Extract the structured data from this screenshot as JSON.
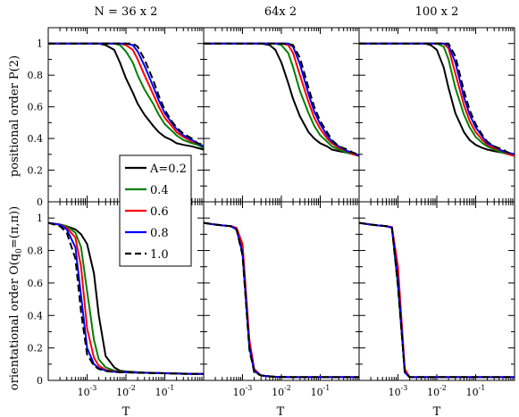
{
  "chart_data": {
    "type": "line",
    "panel_titles": [
      "N = 36 x 2",
      "64x 2",
      "100 x 2"
    ],
    "xlabel": "T",
    "ylabel_top": "positional order P(2)",
    "ylabel_bottom": "orientational order O(q0=(π,π))",
    "ylabel_bottom_parts": [
      "orientational order O(q",
      "0",
      "=(π,π))"
    ],
    "x_scale": "log",
    "xlim": [
      0.0001,
      1.0
    ],
    "x_tick_labels": [
      {
        "value": 0.001,
        "base": "10",
        "exp": "-3"
      },
      {
        "value": 0.01,
        "base": "10",
        "exp": "-2"
      },
      {
        "value": 0.1,
        "base": "10",
        "exp": "-1"
      }
    ],
    "ylim": [
      0,
      1.1
    ],
    "y_ticks": [
      0,
      0.2,
      0.4,
      0.6,
      0.8,
      1
    ],
    "y_tick_labels_top": [
      "0",
      "0.2",
      "0.4",
      "0.6",
      "0.8",
      "1"
    ],
    "y_tick_labels_bottom": [
      "0",
      "0.2",
      "0.4",
      "0.6",
      "0.8",
      "1"
    ],
    "legend_position": "left-middle",
    "series": [
      {
        "name": "A=0.2",
        "color": "#000000",
        "dash": false
      },
      {
        "name": "0.4",
        "color": "#008000",
        "dash": false
      },
      {
        "name": "0.6",
        "color": "#ff0000",
        "dash": false
      },
      {
        "name": "0.8",
        "color": "#0000ff",
        "dash": false
      },
      {
        "name": "1.0",
        "color": "#000000",
        "dash": true
      }
    ],
    "x": [
      0.0001,
      0.0002,
      0.0003,
      0.0005,
      0.0007,
      0.001,
      0.0015,
      0.002,
      0.003,
      0.005,
      0.007,
      0.01,
      0.015,
      0.02,
      0.03,
      0.05,
      0.07,
      0.1,
      0.15,
      0.2,
      0.3,
      0.5,
      0.7,
      1.0
    ],
    "panels": [
      {
        "positional": [
          [
            1.0,
            1.0,
            1.0,
            1.0,
            1.0,
            1.0,
            1.0,
            1.0,
            0.99,
            0.96,
            0.88,
            0.78,
            0.69,
            0.62,
            0.55,
            0.48,
            0.44,
            0.41,
            0.39,
            0.37,
            0.36,
            0.35,
            0.34,
            0.33
          ],
          [
            1.0,
            1.0,
            1.0,
            1.0,
            1.0,
            1.0,
            1.0,
            1.0,
            1.0,
            1.0,
            0.99,
            0.95,
            0.88,
            0.8,
            0.71,
            0.62,
            0.55,
            0.49,
            0.45,
            0.42,
            0.39,
            0.37,
            0.36,
            0.34
          ],
          [
            1.0,
            1.0,
            1.0,
            1.0,
            1.0,
            1.0,
            1.0,
            1.0,
            1.0,
            1.0,
            1.0,
            0.99,
            0.96,
            0.9,
            0.8,
            0.68,
            0.6,
            0.53,
            0.48,
            0.44,
            0.41,
            0.38,
            0.37,
            0.35
          ],
          [
            1.0,
            1.0,
            1.0,
            1.0,
            1.0,
            1.0,
            1.0,
            1.0,
            1.0,
            1.0,
            1.0,
            1.0,
            0.99,
            0.95,
            0.86,
            0.73,
            0.64,
            0.56,
            0.5,
            0.46,
            0.42,
            0.39,
            0.37,
            0.35
          ],
          [
            1.0,
            1.0,
            1.0,
            1.0,
            1.0,
            1.0,
            1.0,
            1.0,
            1.0,
            1.0,
            1.0,
            1.0,
            1.0,
            0.98,
            0.9,
            0.77,
            0.67,
            0.58,
            0.51,
            0.47,
            0.43,
            0.4,
            0.37,
            0.36
          ]
        ],
        "orientational": [
          [
            0.97,
            0.96,
            0.95,
            0.93,
            0.9,
            0.84,
            0.66,
            0.4,
            0.15,
            0.08,
            0.06,
            0.055,
            0.052,
            0.05,
            0.048,
            0.047,
            0.046,
            0.045,
            0.044,
            0.043,
            0.042,
            0.041,
            0.04,
            0.04
          ],
          [
            0.97,
            0.96,
            0.95,
            0.91,
            0.82,
            0.55,
            0.25,
            0.13,
            0.08,
            0.06,
            0.055,
            0.052,
            0.05,
            0.048,
            0.047,
            0.046,
            0.045,
            0.044,
            0.043,
            0.042,
            0.041,
            0.04,
            0.04,
            0.04
          ],
          [
            0.97,
            0.96,
            0.94,
            0.88,
            0.7,
            0.32,
            0.14,
            0.09,
            0.065,
            0.055,
            0.052,
            0.05,
            0.049,
            0.048,
            0.047,
            0.046,
            0.045,
            0.044,
            0.043,
            0.042,
            0.041,
            0.04,
            0.04,
            0.04
          ],
          [
            0.97,
            0.96,
            0.93,
            0.82,
            0.52,
            0.2,
            0.1,
            0.075,
            0.06,
            0.053,
            0.051,
            0.05,
            0.049,
            0.048,
            0.047,
            0.046,
            0.045,
            0.044,
            0.043,
            0.042,
            0.041,
            0.04,
            0.04,
            0.04
          ],
          [
            0.97,
            0.95,
            0.91,
            0.75,
            0.42,
            0.16,
            0.09,
            0.07,
            0.058,
            0.052,
            0.05,
            0.049,
            0.048,
            0.047,
            0.046,
            0.045,
            0.044,
            0.043,
            0.042,
            0.041,
            0.04,
            0.04,
            0.04,
            0.04
          ]
        ]
      },
      {
        "positional": [
          [
            1.0,
            1.0,
            1.0,
            1.0,
            1.0,
            1.0,
            1.0,
            1.0,
            1.0,
            0.99,
            0.96,
            0.88,
            0.75,
            0.65,
            0.54,
            0.44,
            0.4,
            0.37,
            0.35,
            0.33,
            0.32,
            0.31,
            0.3,
            0.29
          ],
          [
            1.0,
            1.0,
            1.0,
            1.0,
            1.0,
            1.0,
            1.0,
            1.0,
            1.0,
            1.0,
            1.0,
            0.99,
            0.94,
            0.85,
            0.7,
            0.56,
            0.48,
            0.42,
            0.38,
            0.35,
            0.33,
            0.31,
            0.3,
            0.29
          ],
          [
            1.0,
            1.0,
            1.0,
            1.0,
            1.0,
            1.0,
            1.0,
            1.0,
            1.0,
            1.0,
            1.0,
            1.0,
            0.99,
            0.94,
            0.8,
            0.63,
            0.53,
            0.46,
            0.4,
            0.37,
            0.34,
            0.32,
            0.3,
            0.29
          ],
          [
            1.0,
            1.0,
            1.0,
            1.0,
            1.0,
            1.0,
            1.0,
            1.0,
            1.0,
            1.0,
            1.0,
            1.0,
            1.0,
            0.98,
            0.87,
            0.68,
            0.57,
            0.49,
            0.42,
            0.38,
            0.35,
            0.32,
            0.31,
            0.29
          ],
          [
            1.0,
            1.0,
            1.0,
            1.0,
            1.0,
            1.0,
            1.0,
            1.0,
            1.0,
            1.0,
            1.0,
            1.0,
            1.0,
            0.99,
            0.91,
            0.72,
            0.6,
            0.51,
            0.44,
            0.39,
            0.35,
            0.33,
            0.31,
            0.3
          ]
        ],
        "orientational": [
          [
            0.97,
            0.96,
            0.955,
            0.95,
            0.93,
            0.8,
            0.22,
            0.06,
            0.03,
            0.025,
            0.022,
            0.021,
            0.02,
            0.02,
            0.02,
            0.02,
            0.02,
            0.02,
            0.02,
            0.02,
            0.02,
            0.02,
            0.02,
            0.02
          ],
          [
            0.97,
            0.96,
            0.955,
            0.95,
            0.93,
            0.78,
            0.2,
            0.055,
            0.03,
            0.025,
            0.022,
            0.021,
            0.02,
            0.02,
            0.02,
            0.02,
            0.02,
            0.02,
            0.02,
            0.02,
            0.02,
            0.02,
            0.02,
            0.02
          ],
          [
            0.97,
            0.96,
            0.955,
            0.95,
            0.94,
            0.84,
            0.25,
            0.07,
            0.03,
            0.025,
            0.022,
            0.021,
            0.02,
            0.02,
            0.02,
            0.02,
            0.02,
            0.02,
            0.02,
            0.02,
            0.02,
            0.02,
            0.02,
            0.02
          ],
          [
            0.97,
            0.96,
            0.955,
            0.95,
            0.93,
            0.79,
            0.21,
            0.06,
            0.03,
            0.025,
            0.022,
            0.021,
            0.02,
            0.02,
            0.02,
            0.02,
            0.02,
            0.02,
            0.02,
            0.02,
            0.02,
            0.02,
            0.02,
            0.02
          ],
          [
            0.97,
            0.96,
            0.955,
            0.95,
            0.93,
            0.77,
            0.19,
            0.05,
            0.03,
            0.025,
            0.022,
            0.021,
            0.02,
            0.02,
            0.02,
            0.02,
            0.02,
            0.02,
            0.02,
            0.02,
            0.02,
            0.02,
            0.02,
            0.02
          ]
        ]
      },
      {
        "positional": [
          [
            1.0,
            1.0,
            1.0,
            1.0,
            1.0,
            1.0,
            1.0,
            1.0,
            1.0,
            1.0,
            0.99,
            0.96,
            0.85,
            0.72,
            0.56,
            0.44,
            0.39,
            0.36,
            0.34,
            0.33,
            0.32,
            0.31,
            0.3,
            0.29
          ],
          [
            1.0,
            1.0,
            1.0,
            1.0,
            1.0,
            1.0,
            1.0,
            1.0,
            1.0,
            1.0,
            1.0,
            1.0,
            0.98,
            0.9,
            0.72,
            0.55,
            0.47,
            0.41,
            0.37,
            0.35,
            0.33,
            0.31,
            0.3,
            0.29
          ],
          [
            1.0,
            1.0,
            1.0,
            1.0,
            1.0,
            1.0,
            1.0,
            1.0,
            1.0,
            1.0,
            1.0,
            1.0,
            1.0,
            0.97,
            0.81,
            0.61,
            0.51,
            0.44,
            0.39,
            0.36,
            0.34,
            0.32,
            0.3,
            0.29
          ],
          [
            1.0,
            1.0,
            1.0,
            1.0,
            1.0,
            1.0,
            1.0,
            1.0,
            1.0,
            1.0,
            1.0,
            1.0,
            1.0,
            0.99,
            0.88,
            0.66,
            0.55,
            0.47,
            0.41,
            0.37,
            0.35,
            0.32,
            0.31,
            0.3
          ],
          [
            1.0,
            1.0,
            1.0,
            1.0,
            1.0,
            1.0,
            1.0,
            1.0,
            1.0,
            1.0,
            1.0,
            1.0,
            1.0,
            1.0,
            0.92,
            0.7,
            0.58,
            0.49,
            0.42,
            0.38,
            0.35,
            0.33,
            0.31,
            0.3
          ]
        ],
        "orientational": [
          [
            0.97,
            0.96,
            0.955,
            0.95,
            0.94,
            0.6,
            0.05,
            0.02,
            0.02,
            0.02,
            0.02,
            0.02,
            0.02,
            0.02,
            0.02,
            0.02,
            0.02,
            0.02,
            0.02,
            0.02,
            0.02,
            0.02,
            0.02,
            0.02
          ],
          [
            0.97,
            0.96,
            0.955,
            0.95,
            0.94,
            0.58,
            0.05,
            0.02,
            0.02,
            0.02,
            0.02,
            0.02,
            0.02,
            0.02,
            0.02,
            0.02,
            0.02,
            0.02,
            0.02,
            0.02,
            0.02,
            0.02,
            0.02,
            0.02
          ],
          [
            0.97,
            0.96,
            0.955,
            0.95,
            0.945,
            0.7,
            0.07,
            0.02,
            0.02,
            0.02,
            0.02,
            0.02,
            0.02,
            0.02,
            0.02,
            0.02,
            0.02,
            0.02,
            0.02,
            0.02,
            0.02,
            0.02,
            0.02,
            0.02
          ],
          [
            0.97,
            0.96,
            0.955,
            0.95,
            0.94,
            0.62,
            0.05,
            0.02,
            0.02,
            0.02,
            0.02,
            0.02,
            0.02,
            0.02,
            0.02,
            0.02,
            0.02,
            0.02,
            0.02,
            0.02,
            0.02,
            0.02,
            0.02,
            0.02
          ],
          [
            0.97,
            0.96,
            0.955,
            0.95,
            0.94,
            0.58,
            0.05,
            0.02,
            0.02,
            0.02,
            0.02,
            0.02,
            0.02,
            0.02,
            0.02,
            0.02,
            0.02,
            0.02,
            0.02,
            0.02,
            0.02,
            0.02,
            0.02,
            0.02
          ]
        ]
      }
    ]
  }
}
